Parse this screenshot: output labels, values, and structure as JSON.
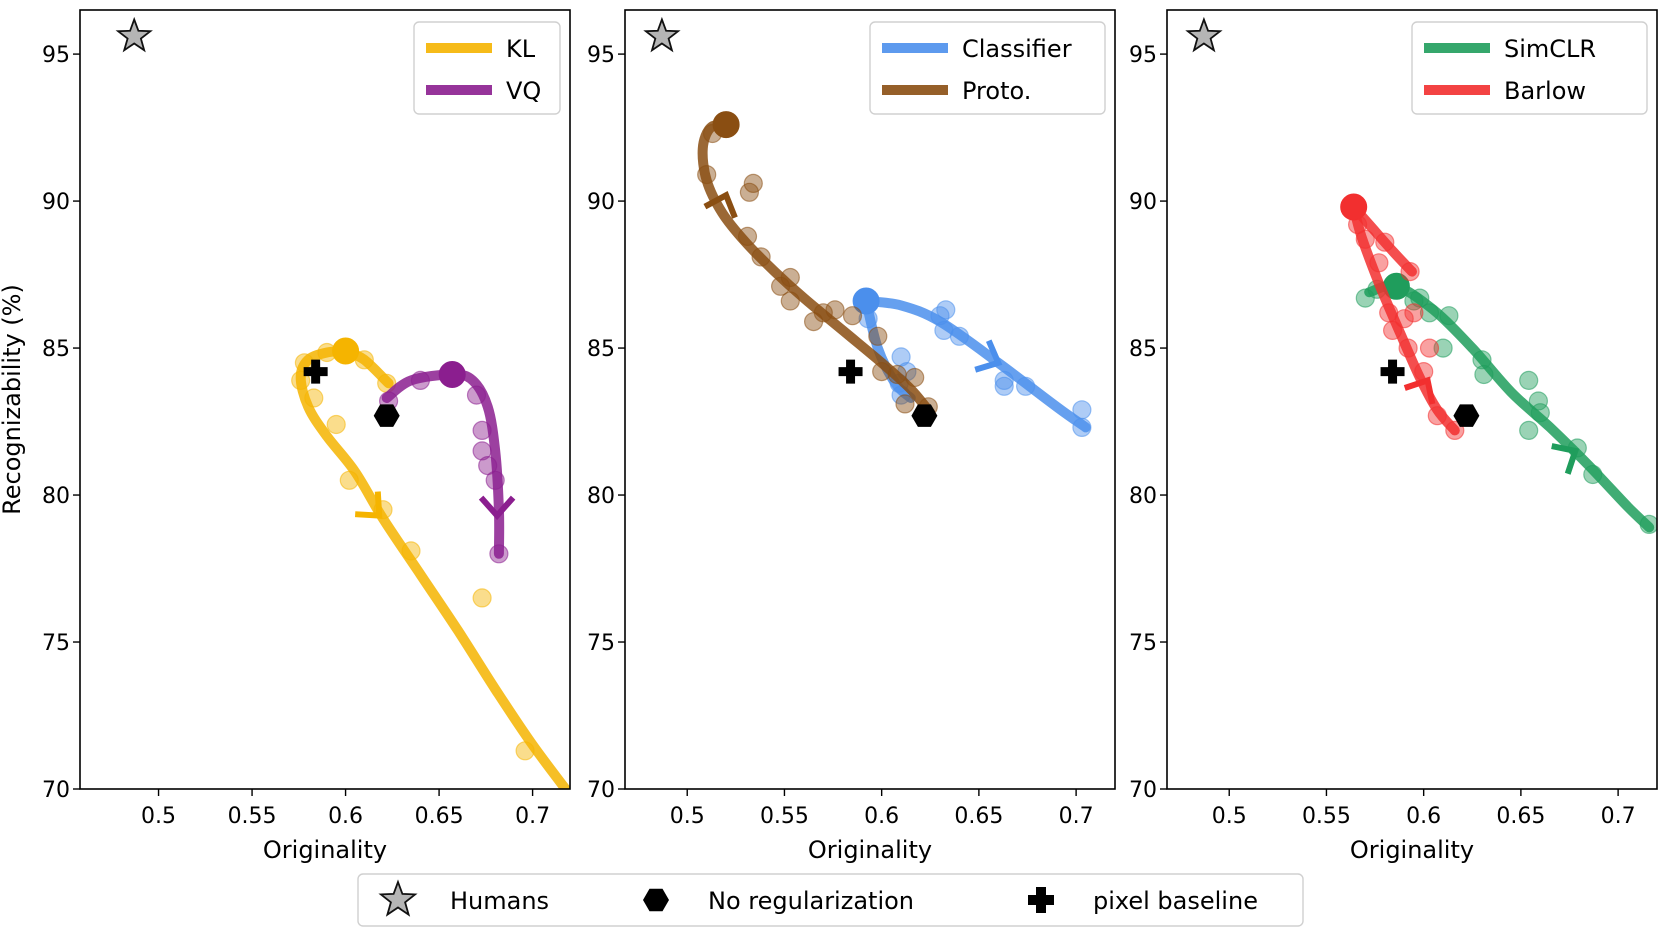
{
  "chart_data": {
    "type": "scatter",
    "shared": {
      "xlabel": "Originality",
      "ylabel": "Recognizability (%)",
      "ylim": [
        70,
        96.5
      ],
      "yticks": [
        70,
        75,
        80,
        85,
        90,
        95
      ],
      "ytick_labels": [
        "70",
        "75",
        "80",
        "85",
        "90",
        "95"
      ],
      "humans": {
        "x": 0.487,
        "y": 95.6,
        "label": "Humans"
      },
      "no_regularization": {
        "x": 0.622,
        "y": 82.7,
        "label": "No regularization"
      },
      "pixel_baseline": {
        "x": 0.584,
        "y": 84.2,
        "label": "pixel baseline"
      },
      "bottom_legend": [
        "Humans",
        "No regularization",
        "pixel baseline"
      ]
    },
    "panels": [
      {
        "xlim": [
          0.458,
          0.72
        ],
        "xticks": [
          0.5,
          0.55,
          0.6,
          0.65,
          0.7
        ],
        "xtick_labels": [
          "0.5",
          "0.55",
          "0.6",
          "0.65",
          "0.7"
        ],
        "legend": [
          "KL",
          "VQ"
        ],
        "series": [
          {
            "name": "KL",
            "color": "#F5B400",
            "end": {
              "x": 0.6,
              "y": 84.9
            },
            "curve": [
              [
                0.6,
                84.9
              ],
              [
                0.59,
                84.85
              ],
              [
                0.58,
                84.6
              ],
              [
                0.576,
                84.0
              ],
              [
                0.58,
                83.0
              ],
              [
                0.59,
                82.0
              ],
              [
                0.605,
                80.8
              ],
              [
                0.62,
                79.2
              ],
              [
                0.64,
                77.3
              ],
              [
                0.66,
                75.4
              ],
              [
                0.68,
                73.4
              ],
              [
                0.7,
                71.5
              ],
              [
                0.72,
                69.8
              ]
            ],
            "tail": [
              [
                0.6,
                84.9
              ],
              [
                0.61,
                84.6
              ],
              [
                0.623,
                83.8
              ]
            ],
            "arrow": {
              "x": 0.618,
              "y": 79.3,
              "angle": 45
            },
            "points": [
              [
                0.578,
                84.5
              ],
              [
                0.576,
                83.9
              ],
              [
                0.583,
                83.3
              ],
              [
                0.595,
                82.4
              ],
              [
                0.602,
                80.5
              ],
              [
                0.62,
                79.5
              ],
              [
                0.635,
                78.1
              ],
              [
                0.673,
                76.5
              ],
              [
                0.696,
                71.3
              ],
              [
                0.622,
                83.8
              ],
              [
                0.61,
                84.6
              ],
              [
                0.59,
                84.85
              ]
            ]
          },
          {
            "name": "VQ",
            "color": "#8B1E8F",
            "end": {
              "x": 0.657,
              "y": 84.1
            },
            "curve": [
              [
                0.622,
                83.3
              ],
              [
                0.635,
                83.9
              ],
              [
                0.657,
                84.1
              ],
              [
                0.668,
                83.9
              ],
              [
                0.676,
                83.0
              ],
              [
                0.68,
                81.5
              ],
              [
                0.682,
                79.5
              ],
              [
                0.682,
                78.0
              ]
            ],
            "arrow": {
              "x": 0.681,
              "y": 79.3,
              "angle": 90
            },
            "points": [
              [
                0.623,
                83.2
              ],
              [
                0.64,
                83.9
              ],
              [
                0.656,
                84.0
              ],
              [
                0.67,
                83.4
              ],
              [
                0.673,
                82.2
              ],
              [
                0.673,
                81.5
              ],
              [
                0.676,
                81.0
              ],
              [
                0.68,
                80.5
              ],
              [
                0.682,
                78.0
              ]
            ]
          }
        ]
      },
      {
        "xlim": [
          0.468,
          0.72
        ],
        "xticks": [
          0.5,
          0.55,
          0.6,
          0.65,
          0.7
        ],
        "xtick_labels": [
          "0.5",
          "0.55",
          "0.6",
          "0.65",
          "0.7"
        ],
        "legend": [
          "Classifier",
          "Proto."
        ],
        "series": [
          {
            "name": "Classifier",
            "color": "#4B8FEC",
            "end": {
              "x": 0.592,
              "y": 86.6
            },
            "curve": [
              [
                0.592,
                86.6
              ],
              [
                0.61,
                86.45
              ],
              [
                0.63,
                85.9
              ],
              [
                0.66,
                84.5
              ],
              [
                0.69,
                83.0
              ],
              [
                0.705,
                82.3
              ]
            ],
            "tail": [
              [
                0.592,
                86.6
              ],
              [
                0.598,
                85.0
              ],
              [
                0.607,
                83.8
              ],
              [
                0.615,
                83.3
              ]
            ],
            "arrow": {
              "x": 0.66,
              "y": 84.5,
              "angle": 25
            },
            "points": [
              [
                0.593,
                86.0
              ],
              [
                0.61,
                84.7
              ],
              [
                0.613,
                84.2
              ],
              [
                0.609,
                83.8
              ],
              [
                0.61,
                83.4
              ],
              [
                0.63,
                86.1
              ],
              [
                0.633,
                86.3
              ],
              [
                0.632,
                85.6
              ],
              [
                0.64,
                85.4
              ],
              [
                0.663,
                83.9
              ],
              [
                0.663,
                83.7
              ],
              [
                0.674,
                83.7
              ],
              [
                0.703,
                82.9
              ],
              [
                0.703,
                82.3
              ]
            ]
          },
          {
            "name": "Proto.",
            "color": "#8A4E12",
            "end": {
              "x": 0.52,
              "y": 92.6
            },
            "curve": [
              [
                0.52,
                92.6
              ],
              [
                0.512,
                92.5
              ],
              [
                0.508,
                91.8
              ],
              [
                0.51,
                90.7
              ],
              [
                0.518,
                89.6
              ],
              [
                0.53,
                88.6
              ],
              [
                0.545,
                87.6
              ],
              [
                0.56,
                86.7
              ],
              [
                0.58,
                85.6
              ],
              [
                0.6,
                84.5
              ],
              [
                0.615,
                83.6
              ],
              [
                0.625,
                82.8
              ]
            ],
            "arrow": {
              "x": 0.52,
              "y": 90.2,
              "angle": 290
            },
            "points": [
              [
                0.513,
                92.3
              ],
              [
                0.51,
                90.9
              ],
              [
                0.532,
                90.3
              ],
              [
                0.534,
                90.6
              ],
              [
                0.531,
                88.8
              ],
              [
                0.538,
                88.1
              ],
              [
                0.548,
                87.1
              ],
              [
                0.553,
                86.6
              ],
              [
                0.565,
                85.9
              ],
              [
                0.57,
                86.2
              ],
              [
                0.576,
                86.3
              ],
              [
                0.585,
                86.1
              ],
              [
                0.598,
                85.4
              ],
              [
                0.6,
                84.2
              ],
              [
                0.608,
                84.1
              ],
              [
                0.612,
                83.1
              ],
              [
                0.617,
                84.0
              ],
              [
                0.624,
                83.0
              ],
              [
                0.553,
                87.4
              ]
            ]
          }
        ]
      },
      {
        "xlim": [
          0.468,
          0.72
        ],
        "xticks": [
          0.5,
          0.55,
          0.6,
          0.65,
          0.7
        ],
        "xtick_labels": [
          "0.5",
          "0.55",
          "0.6",
          "0.65",
          "0.7"
        ],
        "legend": [
          "SimCLR",
          "Barlow"
        ],
        "series": [
          {
            "name": "SimCLR",
            "color": "#1F9D5C",
            "end": {
              "x": 0.586,
              "y": 87.1
            },
            "curve": [
              [
                0.572,
                86.9
              ],
              [
                0.586,
                87.1
              ],
              [
                0.605,
                86.3
              ],
              [
                0.625,
                85.0
              ],
              [
                0.645,
                83.5
              ],
              [
                0.665,
                82.3
              ],
              [
                0.685,
                81.0
              ],
              [
                0.705,
                79.6
              ],
              [
                0.716,
                78.9
              ]
            ],
            "arrow": {
              "x": 0.678,
              "y": 81.5,
              "angle": 330
            },
            "points": [
              [
                0.57,
                86.7
              ],
              [
                0.576,
                87.0
              ],
              [
                0.595,
                86.6
              ],
              [
                0.598,
                86.7
              ],
              [
                0.603,
                86.2
              ],
              [
                0.613,
                86.1
              ],
              [
                0.61,
                85.0
              ],
              [
                0.63,
                84.6
              ],
              [
                0.631,
                84.1
              ],
              [
                0.654,
                83.9
              ],
              [
                0.659,
                83.2
              ],
              [
                0.66,
                82.8
              ],
              [
                0.654,
                82.2
              ],
              [
                0.679,
                81.6
              ],
              [
                0.687,
                80.7
              ],
              [
                0.716,
                79.0
              ]
            ]
          },
          {
            "name": "Barlow",
            "color": "#F22F2F",
            "end": {
              "x": 0.564,
              "y": 89.8
            },
            "curve": [
              [
                0.564,
                89.8
              ],
              [
                0.568,
                88.8
              ],
              [
                0.577,
                87.2
              ],
              [
                0.588,
                85.5
              ],
              [
                0.598,
                84.0
              ],
              [
                0.607,
                82.9
              ],
              [
                0.616,
                82.2
              ]
            ],
            "tail": [
              [
                0.564,
                89.8
              ],
              [
                0.572,
                89.2
              ],
              [
                0.584,
                88.3
              ],
              [
                0.594,
                87.6
              ]
            ],
            "arrow": {
              "x": 0.602,
              "y": 83.9,
              "angle": 300
            },
            "points": [
              [
                0.566,
                89.2
              ],
              [
                0.57,
                88.7
              ],
              [
                0.577,
                87.9
              ],
              [
                0.582,
                86.2
              ],
              [
                0.584,
                85.6
              ],
              [
                0.59,
                86.0
              ],
              [
                0.592,
                85.0
              ],
              [
                0.595,
                86.2
              ],
              [
                0.603,
                85.0
              ],
              [
                0.6,
                84.2
              ],
              [
                0.607,
                82.7
              ],
              [
                0.616,
                82.2
              ],
              [
                0.593,
                87.6
              ],
              [
                0.58,
                88.6
              ]
            ]
          }
        ]
      }
    ]
  }
}
